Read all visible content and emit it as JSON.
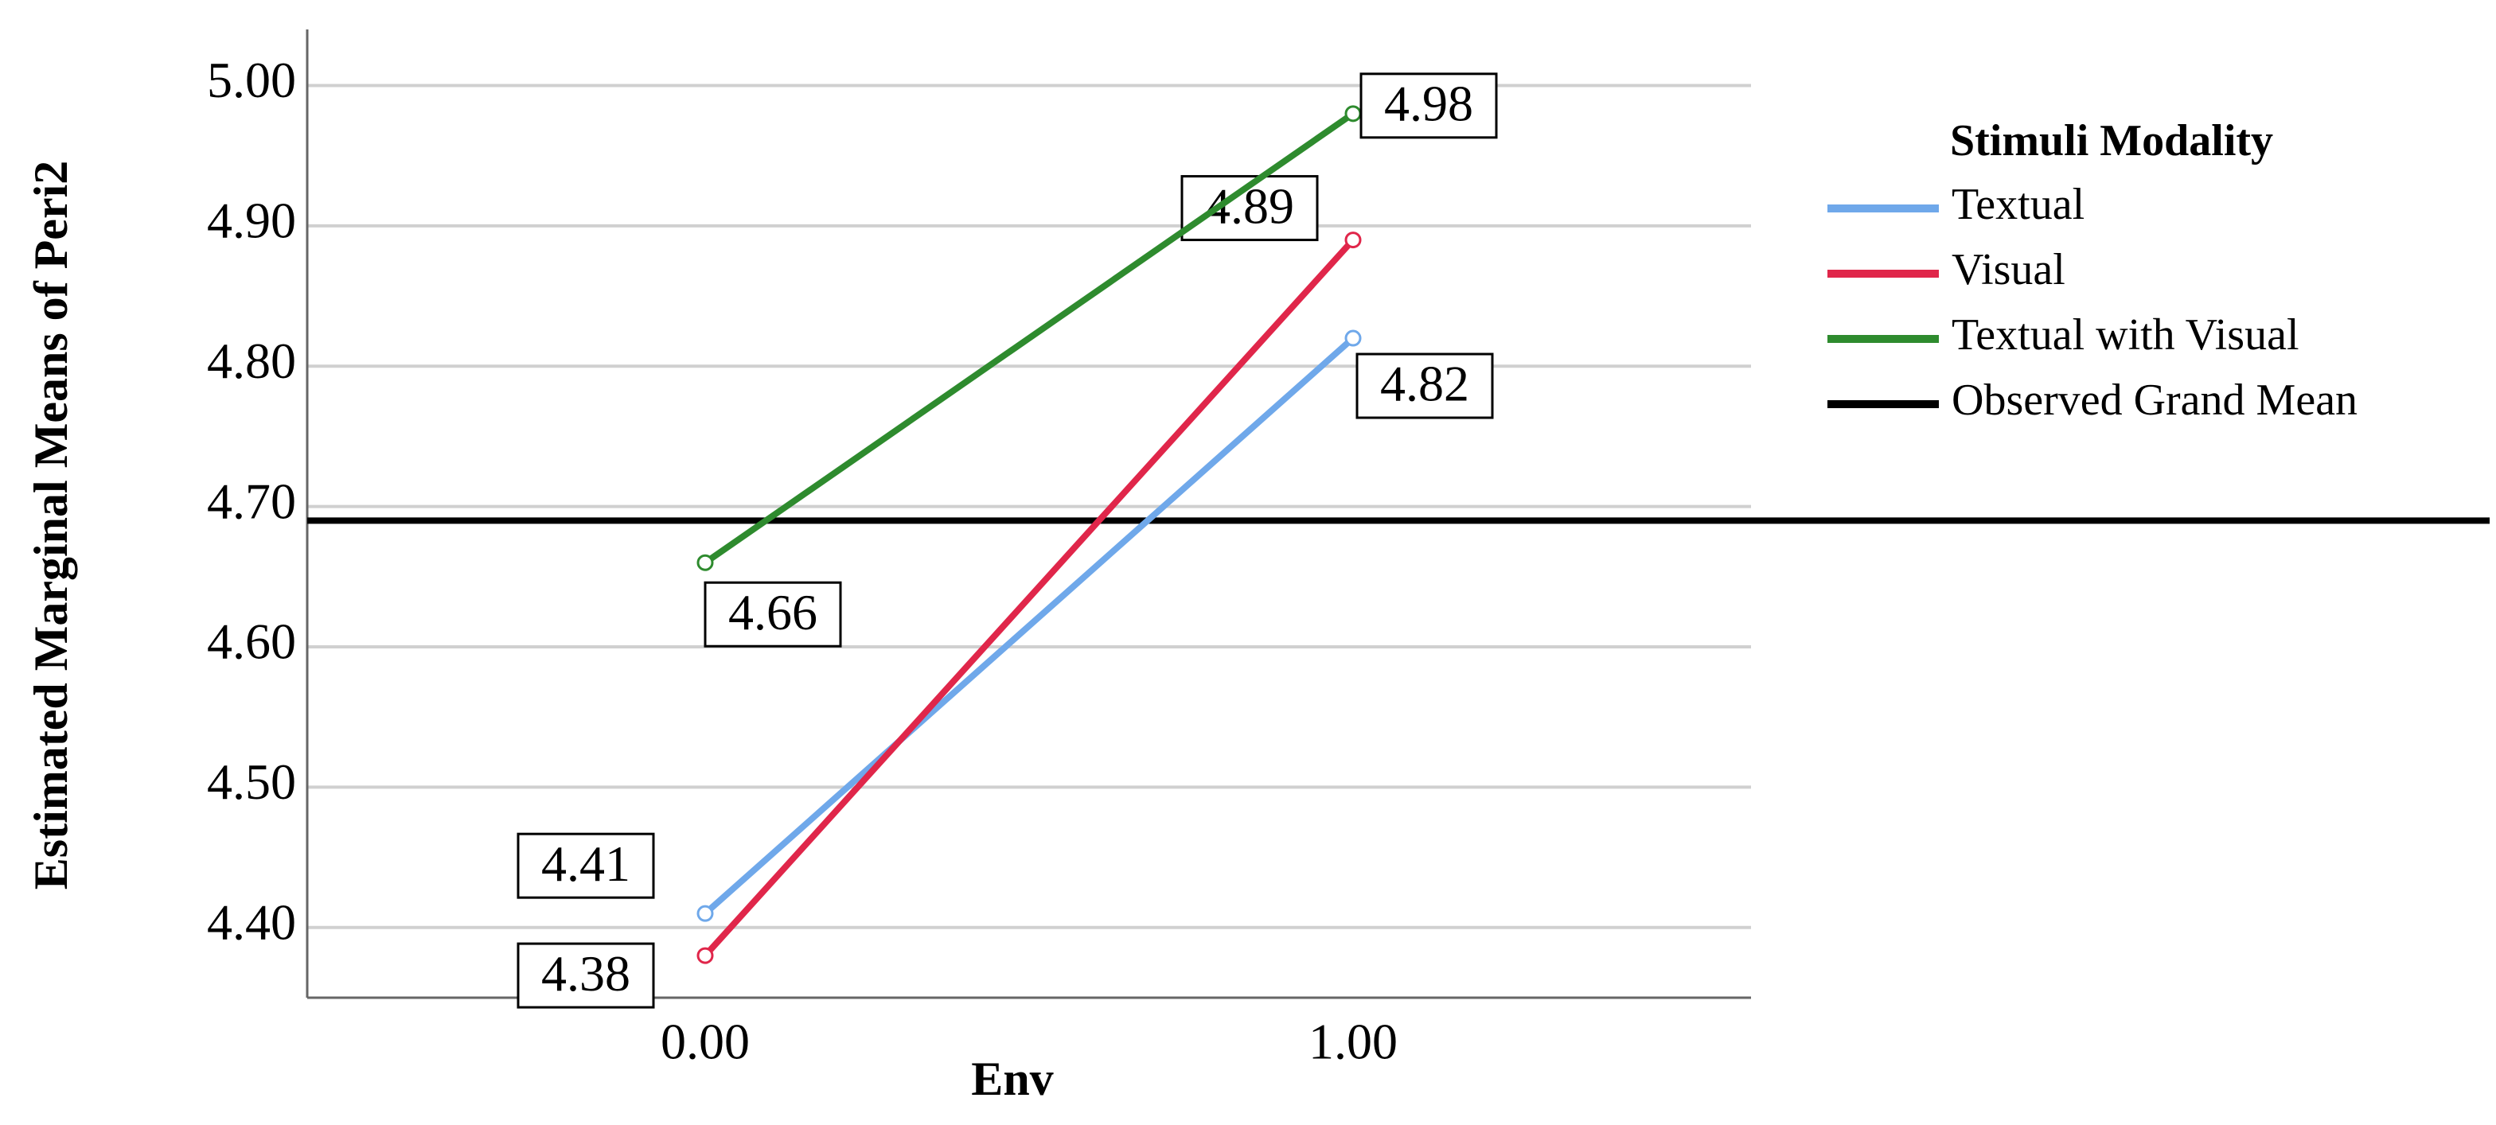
{
  "chart_data": {
    "type": "line",
    "categories": [
      "0.00",
      "1.00"
    ],
    "x_label": "Env",
    "y_label": "Estimated Marginal Means of Peri2",
    "legend_title": "Stimuli Modality",
    "series": [
      {
        "name": "Textual",
        "color": "#6fa8ea",
        "values": [
          4.41,
          4.82
        ]
      },
      {
        "name": "Visual",
        "color": "#e0264a",
        "values": [
          4.38,
          4.89
        ]
      },
      {
        "name": "Textual with Visual",
        "color": "#2e8b2e",
        "values": [
          4.66,
          4.98
        ]
      }
    ],
    "grand_mean": {
      "name": "Observed Grand Mean",
      "color": "#000000",
      "value": 4.69
    },
    "ylim": [
      4.35,
      5.04
    ],
    "yticks": [
      {
        "value": 4.4,
        "label": "4.40"
      },
      {
        "value": 4.5,
        "label": "4.50"
      },
      {
        "value": 4.6,
        "label": "4.60"
      },
      {
        "value": 4.7,
        "label": "4.70"
      },
      {
        "value": 4.8,
        "label": "4.80"
      },
      {
        "value": 4.9,
        "label": "4.90"
      },
      {
        "value": 5.0,
        "label": "5.00"
      }
    ],
    "grid": true,
    "legend": "right"
  }
}
